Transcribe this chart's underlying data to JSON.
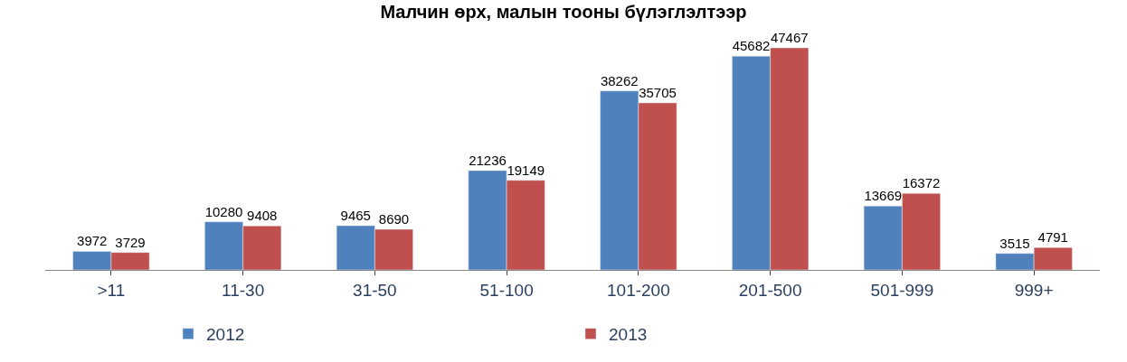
{
  "chart_data": {
    "type": "bar",
    "title": "Малчин өрх, малын тооны бүлэглэлтээр",
    "categories": [
      ">11",
      "11-30",
      "31-50",
      "51-100",
      "101-200",
      "201-500",
      "501-999",
      "999+"
    ],
    "series": [
      {
        "name": "2012",
        "color": "#4f81bd",
        "values": [
          3972,
          10280,
          9465,
          21236,
          38262,
          45682,
          13669,
          3515
        ]
      },
      {
        "name": "2013",
        "color": "#c0504d",
        "values": [
          3729,
          9408,
          8690,
          19149,
          35705,
          47467,
          16372,
          4791
        ]
      }
    ],
    "data_labels": true,
    "legend": "bottom"
  }
}
